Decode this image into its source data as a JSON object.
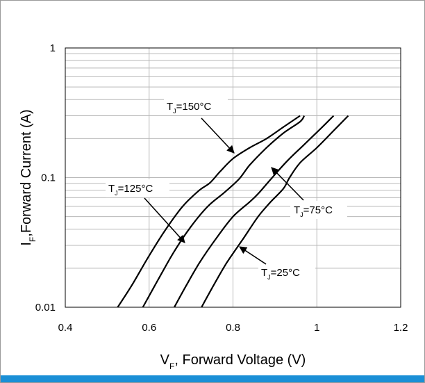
{
  "chart_data": {
    "type": "line",
    "xlabel": {
      "main": "V",
      "sub": "F",
      "rest": ", Forward Voltage (V)"
    },
    "ylabel": {
      "main": "I",
      "sub": "F",
      "rest": ",Forward Current (A)"
    },
    "xlim": [
      0.4,
      1.2
    ],
    "ylim": [
      0.01,
      1
    ],
    "yscale": "log",
    "xticks": [
      "0.4",
      "0.6",
      "0.8",
      "1",
      "1.2"
    ],
    "yticks": [
      "0.01",
      "0.1",
      "1"
    ],
    "grid": true,
    "series": [
      {
        "name": "150°C",
        "points": [
          [
            0.525,
            0.01
          ],
          [
            0.56,
            0.015
          ],
          [
            0.6,
            0.025
          ],
          [
            0.64,
            0.04
          ],
          [
            0.68,
            0.06
          ],
          [
            0.72,
            0.08
          ],
          [
            0.745,
            0.091
          ],
          [
            0.77,
            0.112
          ],
          [
            0.8,
            0.14
          ],
          [
            0.84,
            0.17
          ],
          [
            0.88,
            0.2
          ],
          [
            0.92,
            0.245
          ],
          [
            0.96,
            0.3
          ]
        ]
      },
      {
        "name": "125°C",
        "points": [
          [
            0.585,
            0.01
          ],
          [
            0.62,
            0.016
          ],
          [
            0.66,
            0.027
          ],
          [
            0.7,
            0.042
          ],
          [
            0.74,
            0.06
          ],
          [
            0.78,
            0.077
          ],
          [
            0.815,
            0.098
          ],
          [
            0.84,
            0.125
          ],
          [
            0.88,
            0.17
          ],
          [
            0.92,
            0.22
          ],
          [
            0.96,
            0.27
          ],
          [
            0.97,
            0.3
          ]
        ]
      },
      {
        "name": "75°C",
        "points": [
          [
            0.66,
            0.01
          ],
          [
            0.69,
            0.015
          ],
          [
            0.72,
            0.022
          ],
          [
            0.76,
            0.034
          ],
          [
            0.8,
            0.05
          ],
          [
            0.84,
            0.065
          ],
          [
            0.86,
            0.075
          ],
          [
            0.89,
            0.097
          ],
          [
            0.93,
            0.135
          ],
          [
            0.97,
            0.18
          ],
          [
            1.01,
            0.24
          ],
          [
            1.04,
            0.3
          ]
        ]
      },
      {
        "name": "25°C",
        "points": [
          [
            0.725,
            0.01
          ],
          [
            0.755,
            0.015
          ],
          [
            0.785,
            0.022
          ],
          [
            0.825,
            0.034
          ],
          [
            0.86,
            0.05
          ],
          [
            0.89,
            0.065
          ],
          [
            0.92,
            0.082
          ],
          [
            0.935,
            0.1
          ],
          [
            0.96,
            0.13
          ],
          [
            1.0,
            0.17
          ],
          [
            1.04,
            0.23
          ],
          [
            1.075,
            0.3
          ]
        ]
      }
    ],
    "annotations": [
      {
        "main": "T",
        "sub": "J",
        "rest": "=150°C",
        "series": 0
      },
      {
        "main": "T",
        "sub": "J",
        "rest": "=125°C",
        "series": 1
      },
      {
        "main": "T",
        "sub": "J",
        "rest": "=75°C",
        "series": 2
      },
      {
        "main": "T",
        "sub": "J",
        "rest": "=25°C",
        "series": 3
      }
    ]
  },
  "colors": {
    "accent": "#1a8fd6",
    "curve": "#000000",
    "grid": "#b8b8b8",
    "frame": "#9a9a9a"
  }
}
